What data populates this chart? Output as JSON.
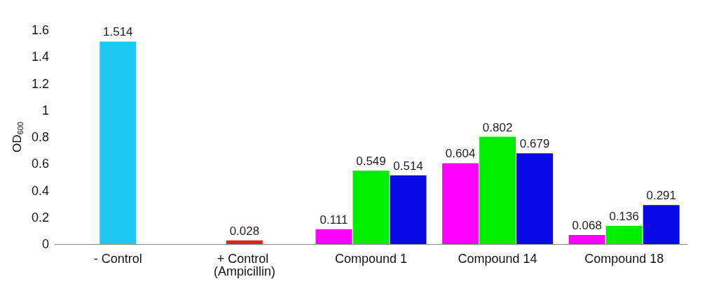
{
  "chart_data": {
    "type": "bar",
    "ylabel": "OD$_{600}$",
    "categories": [
      "- Control",
      "+ Control (Ampicillin)",
      "Compound 1",
      "Compound 14",
      "Compound 18"
    ],
    "series": [
      {
        "color": "#ff00ff",
        "values": [
          null,
          null,
          0.111,
          0.604,
          0.068
        ]
      },
      {
        "colors": [
          "#1ec8f5",
          "#e8201c",
          "#00ee00",
          "#00ee00",
          "#00ee00"
        ],
        "values": [
          1.514,
          0.028,
          0.549,
          0.802,
          0.136
        ]
      },
      {
        "color": "#0a0ae6",
        "values": [
          null,
          null,
          0.514,
          0.679,
          0.291
        ]
      }
    ],
    "ylim": [
      0,
      1.6
    ],
    "yticks": [
      0,
      0.2,
      0.4,
      0.6,
      0.8,
      1,
      1.2,
      1.4,
      1.6
    ],
    "grid": false,
    "data_labels": true
  }
}
